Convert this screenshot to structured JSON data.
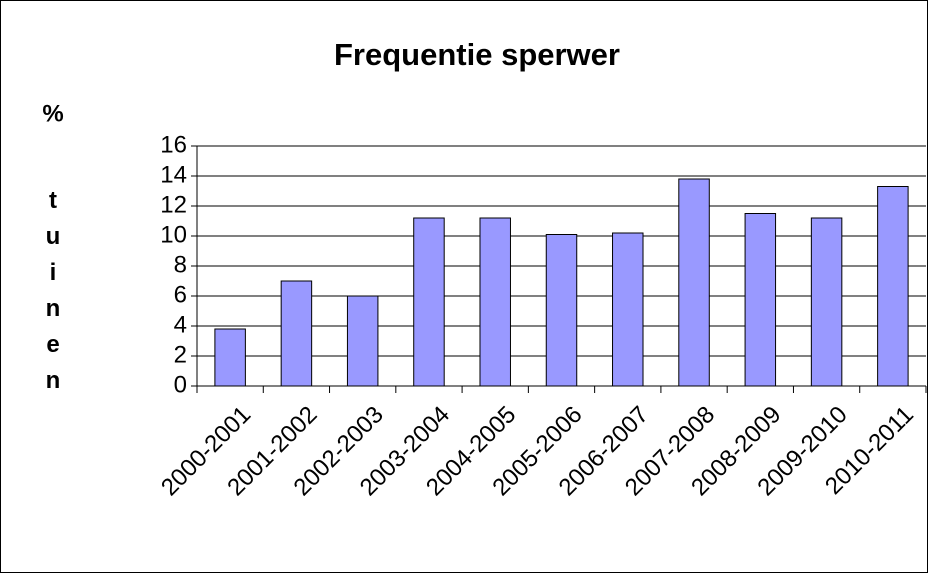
{
  "chart_data": {
    "type": "bar",
    "title": "Frequentie sperwer",
    "y_label_unit": "%",
    "y_label": "tuinen",
    "categories": [
      "2000-2001",
      "2001-2002",
      "2002-2003",
      "2003-2004",
      "2004-2005",
      "2005-2006",
      "2006-2007",
      "2007-2008",
      "2008-2009",
      "2009-2010",
      "2010-2011"
    ],
    "values": [
      3.8,
      7,
      6,
      11.2,
      11.2,
      10.1,
      10.2,
      13.8,
      11.5,
      11.2,
      13.3
    ],
    "color": "#9999ff",
    "ylim": [
      0,
      16
    ],
    "yticks": [
      0,
      2,
      4,
      6,
      8,
      10,
      12,
      14,
      16
    ],
    "grid": true
  }
}
